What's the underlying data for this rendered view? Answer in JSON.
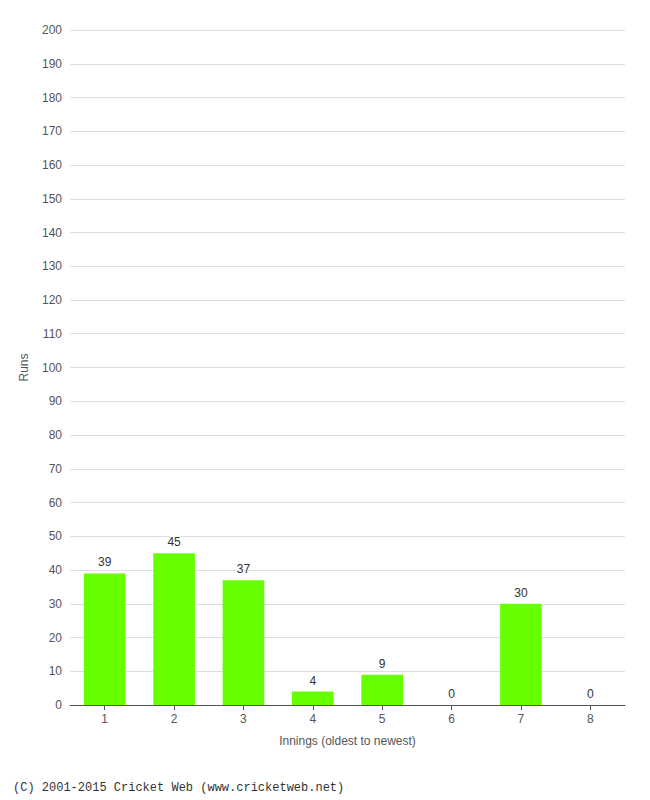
{
  "chart_data": {
    "type": "bar",
    "xlabel": "Innings (oldest to newest)",
    "ylabel": "Runs",
    "categories": [
      "1",
      "2",
      "3",
      "4",
      "5",
      "6",
      "7",
      "8"
    ],
    "values": [
      39,
      45,
      37,
      4,
      9,
      0,
      30,
      0
    ],
    "color": "#66ff00",
    "ylim": [
      0,
      200
    ],
    "yticks": [
      0,
      10,
      20,
      30,
      40,
      50,
      60,
      70,
      80,
      90,
      100,
      110,
      120,
      130,
      140,
      150,
      160,
      170,
      180,
      190,
      200
    ],
    "grid": true,
    "data_labels": true,
    "annotations": [
      "(C) 2001-2015 Cricket Web (www.cricketweb.net)"
    ]
  }
}
